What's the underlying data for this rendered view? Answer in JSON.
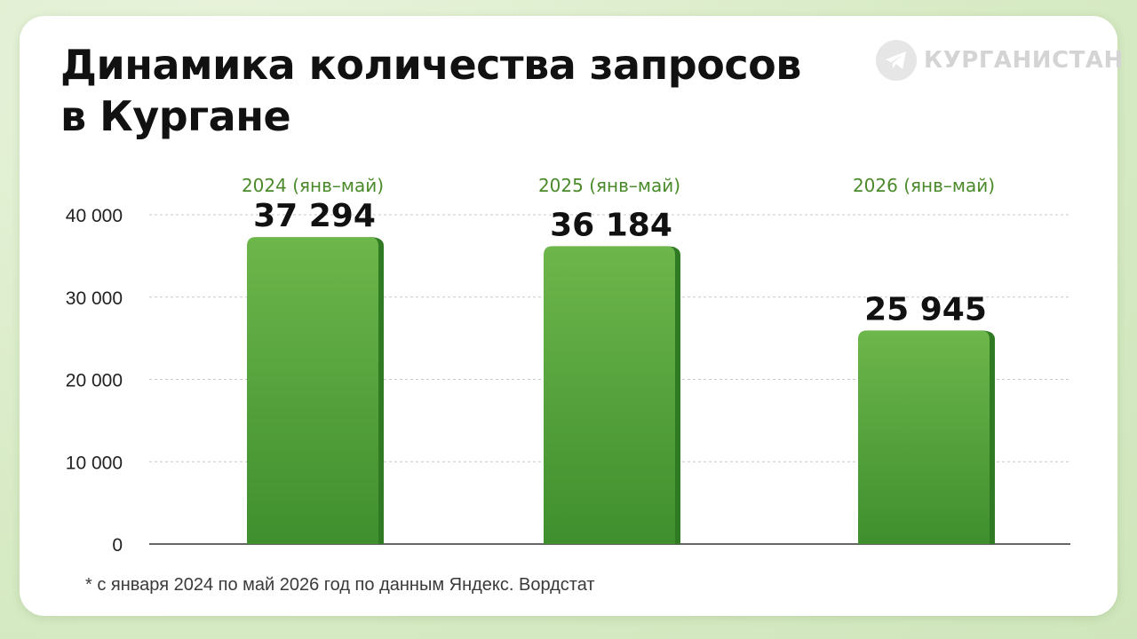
{
  "header": {
    "title_line1": "Динамика количества запросов",
    "title_line2": "в Кургане"
  },
  "brand": {
    "name": "КУРГАНИСТАН",
    "icon": "telegram-icon"
  },
  "footnote": "* с января 2024 по май 2026 год по данным Яндекс. Вордстат",
  "colors": {
    "bar_top": "#6db64b",
    "bar_bottom": "#3f8f2e",
    "bar_side": "#2f7a22",
    "category_label": "#4a8a2a",
    "grid": "#c8c8c8",
    "axis": "#333333"
  },
  "chart_data": {
    "type": "bar",
    "categories": [
      "2024 (янв–май)",
      "2025 (янв–май)",
      "2026 (янв–май)"
    ],
    "values": [
      37294,
      36184,
      25945
    ],
    "data_labels": [
      "37 294",
      "36 184",
      "25 945"
    ],
    "yticks": [
      0,
      10000,
      20000,
      30000,
      40000
    ],
    "ytick_labels": [
      "0",
      "10 000",
      "20 000",
      "30 000",
      "40 000"
    ],
    "ylim": [
      0,
      40000
    ],
    "grid": true,
    "legend": "none"
  }
}
